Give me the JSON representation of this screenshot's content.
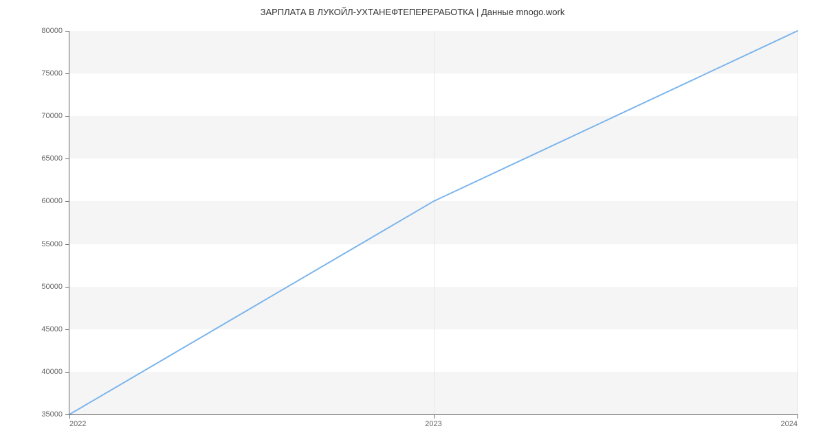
{
  "chart": {
    "type": "line",
    "title": "ЗАРПЛАТА В  ЛУКОЙЛ-УХТАНЕФТЕПЕРЕРАБОТКА | Данные mnogo.work",
    "title_fontsize": 13,
    "title_color": "#333333",
    "background_color": "#ffffff",
    "band_color": "#f5f5f5",
    "axis_color": "#666666",
    "grid_color": "#e6e6e6",
    "label_color": "#666666",
    "label_fontsize": 11,
    "x": {
      "min": 2022,
      "max": 2024,
      "ticks": [
        2022,
        2023,
        2024
      ],
      "tick_labels": [
        "2022",
        "2023",
        "2024"
      ]
    },
    "y": {
      "min": 35000,
      "max": 80000,
      "ticks": [
        35000,
        40000,
        45000,
        50000,
        55000,
        60000,
        65000,
        70000,
        75000,
        80000
      ],
      "tick_labels": [
        "35000",
        "40000",
        "45000",
        "50000",
        "55000",
        "60000",
        "65000",
        "70000",
        "75000",
        "80000"
      ]
    },
    "bands": [
      {
        "from": 35000,
        "to": 40000
      },
      {
        "from": 45000,
        "to": 50000
      },
      {
        "from": 55000,
        "to": 60000
      },
      {
        "from": 65000,
        "to": 70000
      },
      {
        "from": 75000,
        "to": 80000
      }
    ],
    "series": {
      "color": "#7cb5ec",
      "width": 2,
      "points": [
        {
          "x": 2022,
          "y": 35000
        },
        {
          "x": 2023,
          "y": 60000
        },
        {
          "x": 2024,
          "y": 80000
        }
      ]
    }
  }
}
